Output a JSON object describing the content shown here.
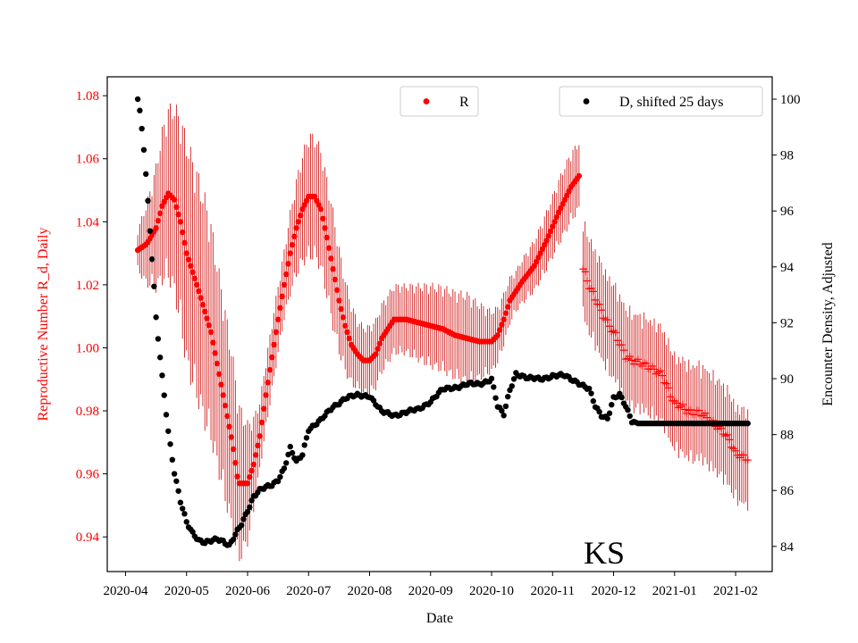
{
  "chart_data": {
    "type": "scatter",
    "state_label": "KS",
    "xlabel": "Date",
    "ylabel_left": "Reproductive Number R_d, Daily",
    "ylabel_right": "Encounter Density, Adjusted",
    "colors": {
      "left_axis": "#ff0000",
      "r_series": "#ff0000",
      "error_bar": "#cc0000",
      "d_series": "#000000",
      "right_axis": "#000000"
    },
    "x_ticks": [
      "2020-04",
      "2020-05",
      "2020-06",
      "2020-07",
      "2020-08",
      "2020-09",
      "2020-10",
      "2020-11",
      "2020-12",
      "2021-01",
      "2021-02"
    ],
    "x_range_months": [
      -0.3,
      10.6
    ],
    "ylim_left": [
      0.929,
      1.086
    ],
    "yticks_left": [
      "0.94",
      "0.96",
      "0.98",
      "1.00",
      "1.02",
      "1.04",
      "1.06",
      "1.08"
    ],
    "ylim_right": [
      83.1,
      100.8
    ],
    "yticks_right": [
      "84",
      "86",
      "88",
      "90",
      "92",
      "94",
      "96",
      "98",
      "100"
    ],
    "legends": {
      "r_label": "R",
      "d_label": "D, shifted 25 days"
    },
    "r_knots": [
      [
        0.2,
        1.031
      ],
      [
        0.35,
        1.033
      ],
      [
        0.5,
        1.038
      ],
      [
        0.6,
        1.045
      ],
      [
        0.7,
        1.049
      ],
      [
        0.8,
        1.047
      ],
      [
        0.9,
        1.04
      ],
      [
        1.0,
        1.03
      ],
      [
        1.2,
        1.018
      ],
      [
        1.4,
        1.005
      ],
      [
        1.6,
        0.985
      ],
      [
        1.75,
        0.97
      ],
      [
        1.85,
        0.957
      ],
      [
        2.0,
        0.957
      ],
      [
        2.1,
        0.963
      ],
      [
        2.2,
        0.972
      ],
      [
        2.3,
        0.985
      ],
      [
        2.4,
        0.997
      ],
      [
        2.5,
        1.009
      ],
      [
        2.6,
        1.02
      ],
      [
        2.7,
        1.03
      ],
      [
        2.8,
        1.038
      ],
      [
        2.9,
        1.044
      ],
      [
        3.0,
        1.048
      ],
      [
        3.1,
        1.048
      ],
      [
        3.2,
        1.044
      ],
      [
        3.3,
        1.035
      ],
      [
        3.4,
        1.025
      ],
      [
        3.5,
        1.015
      ],
      [
        3.6,
        1.007
      ],
      [
        3.7,
        1.001
      ],
      [
        3.8,
        0.998
      ],
      [
        3.9,
        0.996
      ],
      [
        4.0,
        0.996
      ],
      [
        4.1,
        0.998
      ],
      [
        4.2,
        1.003
      ],
      [
        4.4,
        1.009
      ],
      [
        4.6,
        1.009
      ],
      [
        4.8,
        1.008
      ],
      [
        5.0,
        1.007
      ],
      [
        5.2,
        1.006
      ],
      [
        5.4,
        1.004
      ],
      [
        5.6,
        1.003
      ],
      [
        5.8,
        1.002
      ],
      [
        6.0,
        1.002
      ],
      [
        6.1,
        1.004
      ],
      [
        6.2,
        1.009
      ],
      [
        6.3,
        1.015
      ],
      [
        6.5,
        1.021
      ],
      [
        6.7,
        1.026
      ],
      [
        6.9,
        1.034
      ],
      [
        7.1,
        1.043
      ],
      [
        7.3,
        1.051
      ],
      [
        7.45,
        1.055
      ]
    ],
    "r_error_halfwidth": [
      [
        0.2,
        0.006
      ],
      [
        0.6,
        0.022
      ],
      [
        1.0,
        0.033
      ],
      [
        1.3,
        0.033
      ],
      [
        1.8,
        0.025
      ],
      [
        2.2,
        0.01
      ],
      [
        2.6,
        0.01
      ],
      [
        3.0,
        0.018
      ],
      [
        3.4,
        0.017
      ],
      [
        3.8,
        0.01
      ],
      [
        4.2,
        0.01
      ],
      [
        4.6,
        0.01
      ],
      [
        5.0,
        0.012
      ],
      [
        5.6,
        0.013
      ],
      [
        6.0,
        0.009
      ],
      [
        6.4,
        0.006
      ],
      [
        6.8,
        0.008
      ],
      [
        7.2,
        0.01
      ],
      [
        7.45,
        0.01
      ]
    ],
    "r_plus_knots": [
      [
        7.5,
        1.025
      ],
      [
        7.6,
        1.019
      ],
      [
        7.8,
        1.012
      ],
      [
        8.0,
        1.005
      ],
      [
        8.2,
        0.997
      ],
      [
        8.4,
        0.996
      ],
      [
        8.6,
        0.993
      ],
      [
        8.8,
        0.992
      ],
      [
        9.0,
        0.982
      ],
      [
        9.2,
        0.98
      ],
      [
        9.4,
        0.98
      ],
      [
        9.6,
        0.976
      ],
      [
        9.8,
        0.974
      ],
      [
        9.9,
        0.971
      ],
      [
        10.0,
        0.966
      ],
      [
        10.1,
        0.965
      ],
      [
        10.2,
        0.965
      ]
    ],
    "r_plus_error_halfwidth": 0.014,
    "d_knots": [
      [
        0.2,
        100.0
      ],
      [
        0.25,
        99.3
      ],
      [
        0.3,
        98.2
      ],
      [
        0.35,
        96.8
      ],
      [
        0.4,
        95.3
      ],
      [
        0.45,
        93.8
      ],
      [
        0.5,
        92.2
      ],
      [
        0.6,
        90.1
      ],
      [
        0.7,
        88.1
      ],
      [
        0.8,
        86.6
      ],
      [
        0.9,
        85.6
      ],
      [
        1.0,
        84.9
      ],
      [
        1.1,
        84.5
      ],
      [
        1.2,
        84.2
      ],
      [
        1.3,
        84.1
      ],
      [
        1.4,
        84.2
      ],
      [
        1.5,
        84.3
      ],
      [
        1.6,
        84.2
      ],
      [
        1.7,
        84.0
      ],
      [
        1.8,
        84.4
      ],
      [
        1.9,
        84.8
      ],
      [
        2.0,
        85.3
      ],
      [
        2.1,
        85.8
      ],
      [
        2.2,
        86.0
      ],
      [
        2.3,
        86.1
      ],
      [
        2.4,
        86.2
      ],
      [
        2.5,
        86.4
      ],
      [
        2.6,
        86.8
      ],
      [
        2.7,
        87.5
      ],
      [
        2.8,
        87.0
      ],
      [
        2.9,
        87.3
      ],
      [
        3.0,
        88.2
      ],
      [
        3.2,
        88.5
      ],
      [
        3.4,
        89.0
      ],
      [
        3.6,
        89.3
      ],
      [
        3.8,
        89.4
      ],
      [
        4.0,
        89.4
      ],
      [
        4.2,
        88.8
      ],
      [
        4.4,
        88.7
      ],
      [
        4.6,
        88.8
      ],
      [
        4.8,
        88.9
      ],
      [
        5.0,
        89.2
      ],
      [
        5.2,
        89.6
      ],
      [
        5.4,
        89.7
      ],
      [
        5.6,
        89.8
      ],
      [
        5.8,
        89.8
      ],
      [
        6.0,
        90.0
      ],
      [
        6.1,
        89.0
      ],
      [
        6.2,
        88.7
      ],
      [
        6.3,
        89.6
      ],
      [
        6.4,
        90.2
      ],
      [
        6.6,
        90.0
      ],
      [
        6.8,
        90.0
      ],
      [
        7.0,
        90.1
      ],
      [
        7.2,
        90.1
      ],
      [
        7.4,
        89.9
      ],
      [
        7.6,
        89.6
      ],
      [
        7.7,
        89.0
      ],
      [
        7.8,
        88.7
      ],
      [
        7.9,
        88.6
      ],
      [
        8.0,
        89.3
      ],
      [
        8.1,
        89.4
      ],
      [
        8.2,
        89.0
      ],
      [
        8.3,
        88.5
      ],
      [
        8.4,
        88.4
      ],
      [
        9.0,
        88.4
      ],
      [
        9.5,
        88.4
      ],
      [
        10.0,
        88.4
      ],
      [
        10.2,
        88.4
      ]
    ]
  }
}
